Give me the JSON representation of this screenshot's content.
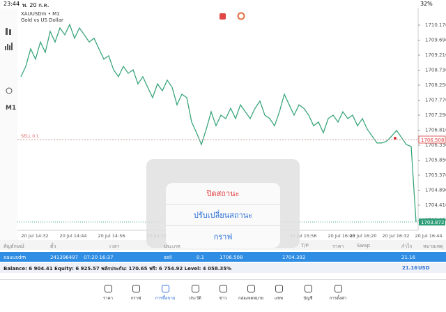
{
  "status_bar": {
    "time": "23:44",
    "date": "พ. 20 ก.ค.",
    "battery": "32%"
  },
  "chart": {
    "type": "line",
    "symbol": "XAUUSDm • M1",
    "description": "Gold vs US Dollar",
    "color": "#3aa57a",
    "values": [
      1708.52,
      1708.85,
      1709.41,
      1709.08,
      1709.63,
      1709.3,
      1709.97,
      1709.63,
      1710.08,
      1709.86,
      1710.19,
      1709.75,
      1710.08,
      1709.86,
      1709.63,
      1709.75,
      1709.41,
      1709.08,
      1709.19,
      1708.74,
      1708.52,
      1708.85,
      1708.63,
      1708.74,
      1708.29,
      1708.52,
      1708.18,
      1707.85,
      1708.29,
      1708.07,
      1708.41,
      1708.18,
      1707.62,
      1707.96,
      1707.85,
      1707.07,
      1706.73,
      1706.35,
      1706.84,
      1707.4,
      1706.95,
      1707.29,
      1707.18,
      1707.51,
      1707.18,
      1707.62,
      1707.4,
      1707.18,
      1707.51,
      1707.74,
      1707.29,
      1707.18,
      1706.95,
      1707.4,
      1707.96,
      1707.62,
      1707.29,
      1707.62,
      1707.51,
      1707.29,
      1706.95,
      1707.07,
      1706.73,
      1707.18,
      1707.29,
      1707.07,
      1707.4,
      1707.18,
      1707.29,
      1706.95,
      1707.18,
      1706.84,
      1706.62,
      1706.4,
      1706.4,
      1706.46,
      1706.62,
      1706.8,
      1706.58,
      1706.35,
      1706.29,
      1703.872
    ],
    "ylim": [
      1703.315,
      1710.706
    ],
    "yticks": [
      {
        "value": 1710.17,
        "label": "1710.170"
      },
      {
        "value": 1709.69,
        "label": "1709.690"
      },
      {
        "value": 1709.21,
        "label": "1709.210"
      },
      {
        "value": 1708.73,
        "label": "1708.730"
      },
      {
        "value": 1708.25,
        "label": "1708.250"
      },
      {
        "value": 1707.77,
        "label": "1707.770"
      },
      {
        "value": 1707.29,
        "label": "1707.290"
      },
      {
        "value": 1706.81,
        "label": "1706.810"
      },
      {
        "value": 1706.33,
        "label": "1706.330"
      },
      {
        "value": 1705.85,
        "label": "1705.850"
      },
      {
        "value": 1705.37,
        "label": "1705.370"
      },
      {
        "value": 1704.89,
        "label": "1704.890"
      },
      {
        "value": 1704.41,
        "label": "1704.410"
      },
      {
        "value": 1703.93,
        "label": "1703.930"
      }
    ],
    "x_labels": [
      "20 Jul 14:32",
      "20 Jul 14:44",
      "20 Jul 14:56",
      "20 Jul 15:08",
      "20 Jul 15:56",
      "20 Jul 16:08",
      "20 Jul 16:20",
      "20 Jul 16:32",
      "20 Jul 16:44"
    ],
    "sell_label": "SELL 0.1",
    "sell_price": 1706.508,
    "current_price": 1703.872
  },
  "toolbar": {
    "timeframe": "M1"
  },
  "table": {
    "headers": [
      "สัญลักษณ์",
      "ตั๋ว",
      "เวลา",
      "ประเภท",
      "T/P",
      "ราคา",
      "Swap",
      "กำไร",
      "หมายเหตุ"
    ],
    "row": [
      "xauusdm",
      "241396497",
      "07:20 16:37",
      "sell",
      "0.1",
      "1706.508",
      "1704.392",
      "21.16"
    ]
  },
  "balance": {
    "text": "Balance: 6 904.41 Equity: 6 925.57 พลักประกัน: 170.65 ฟรี: 6 754.92 Level: 4 058.35%",
    "profit": "21.16",
    "currency": "USD"
  },
  "popup": {
    "items": [
      "ปิดสถานะ",
      "ปรับเปลี่ยนสถานะ",
      "กราฟ"
    ]
  },
  "tabs": [
    "ราคา",
    "กราฟ",
    "การซื้อขาย",
    "ประวัติ",
    "ข่าว",
    "กล่องจดหมาย",
    "แชท",
    "บัญชี",
    "การตั้งค่า"
  ]
}
